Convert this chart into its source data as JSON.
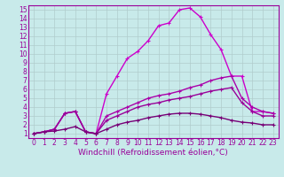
{
  "title": "",
  "xlabel": "Windchill (Refroidissement éolien,°C)",
  "ylabel": "",
  "xlim": [
    -0.5,
    23.5
  ],
  "ylim": [
    0.5,
    15.5
  ],
  "xticks": [
    0,
    1,
    2,
    3,
    4,
    5,
    6,
    7,
    8,
    9,
    10,
    11,
    12,
    13,
    14,
    15,
    16,
    17,
    18,
    19,
    20,
    21,
    22,
    23
  ],
  "yticks": [
    1,
    2,
    3,
    4,
    5,
    6,
    7,
    8,
    9,
    10,
    11,
    12,
    13,
    14,
    15
  ],
  "background_color": "#c8eaea",
  "grid_color": "#b0cccc",
  "spine_color": "#990099",
  "lines": [
    {
      "x": [
        0,
        1,
        2,
        3,
        4,
        5,
        6,
        7,
        8,
        9,
        10,
        11,
        12,
        13,
        14,
        15,
        16,
        17,
        18,
        19,
        20,
        21,
        22,
        23
      ],
      "y": [
        1.0,
        1.2,
        1.5,
        3.3,
        3.5,
        1.2,
        1.0,
        5.5,
        7.5,
        9.5,
        10.3,
        11.5,
        13.2,
        13.5,
        15.0,
        15.2,
        14.2,
        12.2,
        10.5,
        7.5,
        7.5,
        3.5,
        3.5,
        3.3
      ],
      "color": "#cc00cc",
      "lw": 1.0,
      "marker": "+",
      "ms": 3
    },
    {
      "x": [
        0,
        1,
        2,
        3,
        4,
        5,
        6,
        7,
        8,
        9,
        10,
        11,
        12,
        13,
        14,
        15,
        16,
        17,
        18,
        19,
        20,
        21,
        22,
        23
      ],
      "y": [
        1.0,
        1.2,
        1.5,
        3.3,
        3.5,
        1.2,
        1.0,
        3.0,
        3.5,
        4.0,
        4.5,
        5.0,
        5.3,
        5.5,
        5.8,
        6.2,
        6.5,
        7.0,
        7.3,
        7.5,
        5.0,
        4.0,
        3.5,
        3.3
      ],
      "color": "#aa00aa",
      "lw": 1.0,
      "marker": "+",
      "ms": 3
    },
    {
      "x": [
        0,
        1,
        2,
        3,
        4,
        5,
        6,
        7,
        8,
        9,
        10,
        11,
        12,
        13,
        14,
        15,
        16,
        17,
        18,
        19,
        20,
        21,
        22,
        23
      ],
      "y": [
        1.0,
        1.2,
        1.5,
        3.3,
        3.5,
        1.2,
        1.0,
        2.5,
        3.0,
        3.5,
        4.0,
        4.3,
        4.5,
        4.8,
        5.0,
        5.2,
        5.5,
        5.8,
        6.0,
        6.2,
        4.5,
        3.5,
        3.0,
        3.0
      ],
      "color": "#990099",
      "lw": 1.0,
      "marker": "+",
      "ms": 3
    },
    {
      "x": [
        0,
        1,
        2,
        3,
        4,
        5,
        6,
        7,
        8,
        9,
        10,
        11,
        12,
        13,
        14,
        15,
        16,
        17,
        18,
        19,
        20,
        21,
        22,
        23
      ],
      "y": [
        1.0,
        1.2,
        1.3,
        1.5,
        1.8,
        1.2,
        1.0,
        1.5,
        2.0,
        2.3,
        2.5,
        2.8,
        3.0,
        3.2,
        3.3,
        3.3,
        3.2,
        3.0,
        2.8,
        2.5,
        2.3,
        2.2,
        2.0,
        2.0
      ],
      "color": "#770077",
      "lw": 1.0,
      "marker": "+",
      "ms": 2.5
    }
  ],
  "tick_fontsize": 5.5,
  "xlabel_fontsize": 6.5,
  "tick_color": "#990099",
  "label_color": "#990099"
}
